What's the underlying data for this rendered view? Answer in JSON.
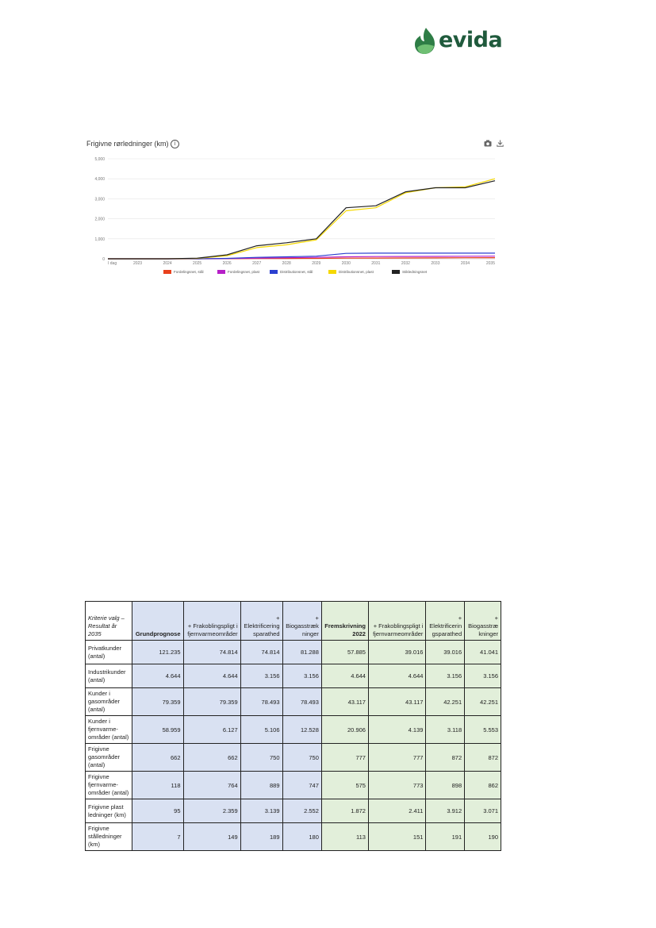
{
  "logo": {
    "text": "evida"
  },
  "chart_data": {
    "type": "line",
    "title": "Frigivne rørledninger (km)",
    "xlabel": "",
    "ylabel": "",
    "categories": [
      "I dag",
      "2023",
      "2024",
      "2025",
      "2026",
      "2027",
      "2028",
      "2029",
      "2030",
      "2031",
      "2032",
      "2033",
      "2034",
      "2035"
    ],
    "ylim": [
      0,
      5000
    ],
    "yticks": [
      "0",
      "1,000",
      "2,000",
      "3,000",
      "4,000",
      "5,000"
    ],
    "grid": true,
    "legend_position": "bottom",
    "series": [
      {
        "name": "Fordelingsnet, stål",
        "color": "#e8401c",
        "values": [
          0,
          0,
          0,
          0,
          5,
          10,
          15,
          20,
          30,
          35,
          40,
          45,
          50,
          55
        ]
      },
      {
        "name": "Fordelingsnet, plast",
        "color": "#b620c8",
        "values": [
          0,
          0,
          0,
          0,
          10,
          30,
          50,
          70,
          100,
          110,
          115,
          120,
          125,
          130
        ]
      },
      {
        "name": "Distributionsnet, stål",
        "color": "#2b3fd0",
        "values": [
          0,
          0,
          0,
          0,
          20,
          70,
          100,
          130,
          270,
          280,
          280,
          280,
          280,
          280
        ]
      },
      {
        "name": "Distributionsnet, plast",
        "color": "#f5d800",
        "values": [
          0,
          0,
          0,
          20,
          150,
          560,
          700,
          950,
          2400,
          2550,
          3300,
          3550,
          3600,
          4000
        ]
      },
      {
        "name": "Stikledningsnet",
        "color": "#222222",
        "values": [
          0,
          0,
          0,
          30,
          200,
          650,
          800,
          1000,
          2550,
          2650,
          3350,
          3550,
          3550,
          3900
        ]
      }
    ]
  },
  "icons": {
    "info": "info-icon",
    "camera": "camera-icon",
    "download": "download-icon"
  },
  "table": {
    "headers": [
      "Kriterie valg –\nResultat år 2035",
      "Grundprognose",
      "+ Frakoblingspligt i fjernvarmeområder",
      "+\nElektrificering sparathed",
      "+\nBiogasstræk ninger",
      "Fremskrivning 2022",
      "+ Frakoblingspligt i fjernvarmeområder",
      "+\nElektrificerin gsparathed",
      "+\nBiogasstræ kninger"
    ],
    "rows": [
      {
        "label": "Privatkunder (antal)",
        "values": [
          "121.235",
          "74.814",
          "74.814",
          "81.288",
          "57.885",
          "39.016",
          "39.016",
          "41.041"
        ]
      },
      {
        "label": "Industrikunder (antal)",
        "values": [
          "4.644",
          "4.644",
          "3.156",
          "3.156",
          "4.644",
          "4.644",
          "3.156",
          "3.156"
        ]
      },
      {
        "label": "Kunder i gasområder (antal)",
        "values": [
          "79.359",
          "79.359",
          "78.493",
          "78.493",
          "43.117",
          "43.117",
          "42.251",
          "42.251"
        ]
      },
      {
        "label": "Kunder i fjernvarme-områder (antal)",
        "values": [
          "58.959",
          "6.127",
          "5.106",
          "12.528",
          "20.906",
          "4.139",
          "3.118",
          "5.553"
        ]
      },
      {
        "label": "Frigivne gasområder (antal)",
        "values": [
          "662",
          "662",
          "750",
          "750",
          "777",
          "777",
          "872",
          "872"
        ]
      },
      {
        "label": "Frigivne fjernvarme-områder (antal)",
        "values": [
          "118",
          "764",
          "889",
          "747",
          "575",
          "773",
          "898",
          "862"
        ]
      },
      {
        "label": "Frigivne plast ledninger (km)",
        "values": [
          "95",
          "2.359",
          "3.139",
          "2.552",
          "1.872",
          "2.411",
          "3.912",
          "3.071"
        ]
      },
      {
        "label": "Frigivne stålledninger (km)",
        "values": [
          "7",
          "149",
          "189",
          "180",
          "113",
          "151",
          "191",
          "190"
        ]
      }
    ]
  }
}
